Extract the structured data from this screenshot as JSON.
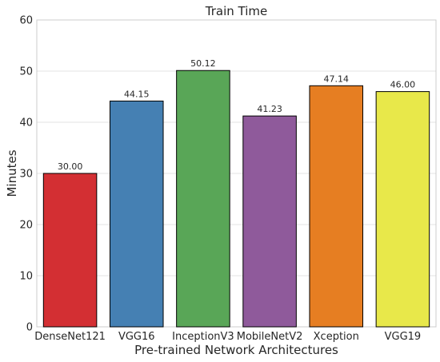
{
  "chart_data": {
    "type": "bar",
    "title": "Train Time",
    "xlabel": "Pre-trained Network Architectures",
    "ylabel": "Minutes",
    "categories": [
      "DenseNet121",
      "VGG16",
      "InceptionV3",
      "MobileNetV2",
      "Xception",
      "VGG19"
    ],
    "values": [
      30.0,
      44.15,
      50.12,
      41.23,
      47.14,
      46.0
    ],
    "value_labels": [
      "30.00",
      "44.15",
      "50.12",
      "41.23",
      "47.14",
      "46.00"
    ],
    "colors": [
      "#d32f33",
      "#4580b3",
      "#59a657",
      "#8f5a9b",
      "#e67e22",
      "#e8e84a"
    ],
    "ylim": [
      0,
      60
    ],
    "yticks": [
      0,
      10,
      20,
      30,
      40,
      50,
      60
    ],
    "grid": true,
    "legend": "none"
  }
}
